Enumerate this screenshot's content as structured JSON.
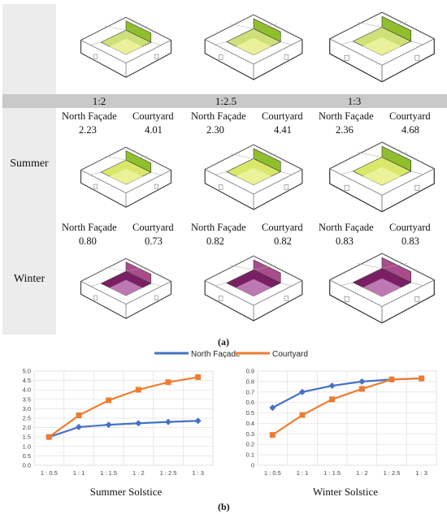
{
  "panel_a": {
    "ratios": [
      "1:2",
      "1:2.5",
      "1:3"
    ],
    "north_label": "North Façade",
    "court_label": "Courtyard",
    "seasons": [
      "Summer",
      "Winter"
    ],
    "summer": [
      {
        "north": "2.23",
        "court": "4.01"
      },
      {
        "north": "2.30",
        "court": "4.41"
      },
      {
        "north": "2.36",
        "court": "4.68"
      }
    ],
    "winter": [
      {
        "north": "0.80",
        "court": "0.73"
      },
      {
        "north": "0.82",
        "court": "0.82"
      },
      {
        "north": "0.83",
        "court": "0.83"
      }
    ],
    "caption": "(a)"
  },
  "panel_b": {
    "caption": "(b)",
    "legend": [
      {
        "name": "North Façade",
        "color": "#4472c4"
      },
      {
        "name": "Courtyard",
        "color": "#ed7d31"
      }
    ]
  },
  "chart_data": [
    {
      "type": "line",
      "title": "Summer Solstice",
      "categories": [
        "1:0.5",
        "1:1",
        "1:1.5",
        "1:2",
        "1:2.5",
        "1:3"
      ],
      "ylim": [
        0,
        5
      ],
      "yticks": [
        "0.0",
        "0.5",
        "1.0",
        "1.5",
        "2.0",
        "2.5",
        "3.0",
        "3.5",
        "4.0",
        "4.5",
        "5.0"
      ],
      "grid": true,
      "series": [
        {
          "name": "North Façade",
          "color": "#4472c4",
          "marker": "diamond",
          "values": [
            1.5,
            2.03,
            2.15,
            2.23,
            2.3,
            2.36
          ]
        },
        {
          "name": "Courtyard",
          "color": "#ed7d31",
          "marker": "square",
          "values": [
            1.5,
            2.65,
            3.45,
            4.01,
            4.41,
            4.68
          ]
        }
      ]
    },
    {
      "type": "line",
      "title": "Winter Solstice",
      "categories": [
        "1:0.5",
        "1:1",
        "1:1.5",
        "1:2",
        "1:2.5",
        "1:3"
      ],
      "ylim": [
        0,
        0.9
      ],
      "yticks": [
        "0",
        "0.1",
        "0.2",
        "0.3",
        "0.4",
        "0.5",
        "0.6",
        "0.7",
        "0.8",
        "0.9"
      ],
      "grid": true,
      "series": [
        {
          "name": "North Façade",
          "color": "#4472c4",
          "marker": "diamond",
          "values": [
            0.55,
            0.7,
            0.76,
            0.8,
            0.82,
            0.83
          ]
        },
        {
          "name": "Courtyard",
          "color": "#ed7d31",
          "marker": "square",
          "values": [
            0.29,
            0.48,
            0.63,
            0.73,
            0.82,
            0.83
          ]
        }
      ]
    }
  ]
}
